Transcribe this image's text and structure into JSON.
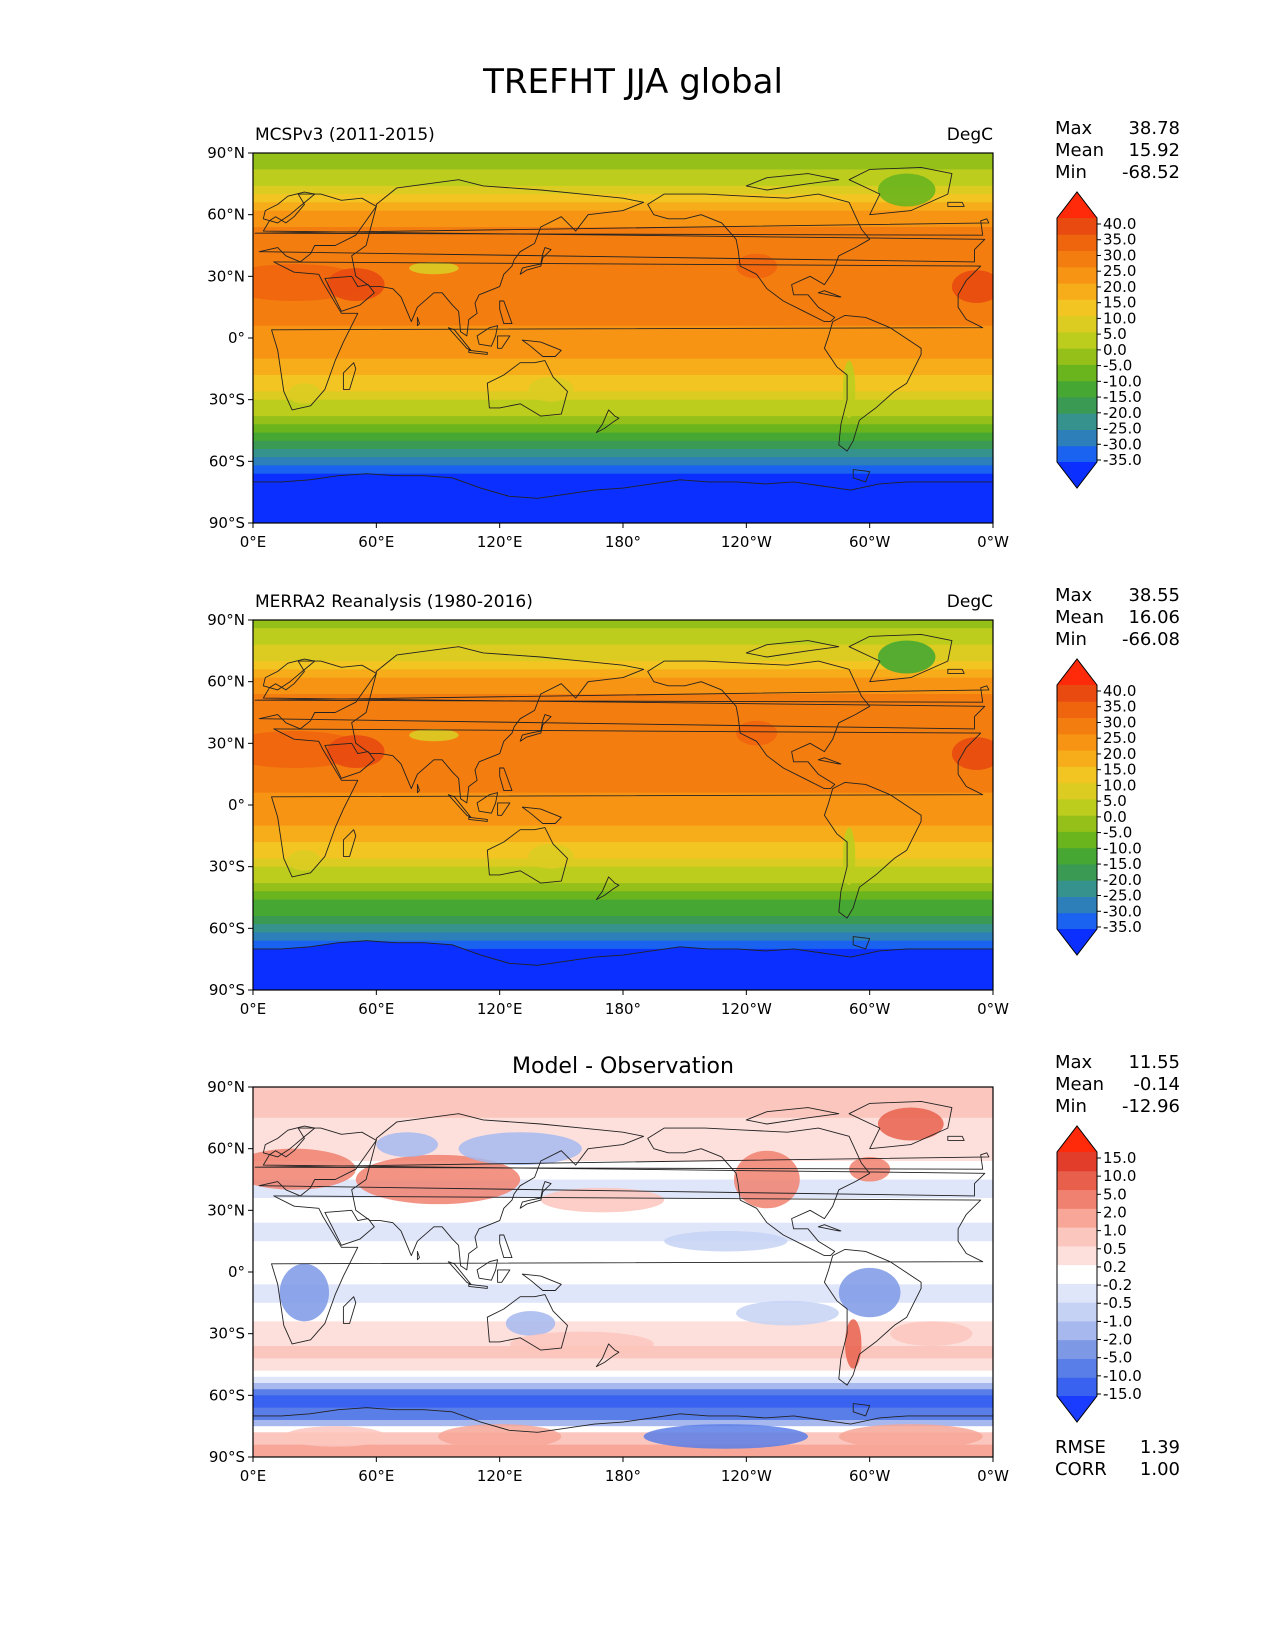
{
  "title": "TREFHT JJA global",
  "panels": [
    {
      "left_title": "MCSPv3 (2011-2015)",
      "center_title": "",
      "right_title": "DegC",
      "stats": [
        {
          "label": "Max",
          "value": "38.78"
        },
        {
          "label": "Mean",
          "value": "15.92"
        },
        {
          "label": "Min",
          "value": "-68.52"
        }
      ],
      "colorbar_labels": [
        "40.0",
        "35.0",
        "30.0",
        "25.0",
        "20.0",
        "15.0",
        "10.0",
        "5.0",
        "0.0",
        "-5.0",
        "-10.0",
        "-15.0",
        "-20.0",
        "-25.0",
        "-30.0",
        "-35.0"
      ]
    },
    {
      "left_title": "MERRA2 Reanalysis (1980-2016)",
      "center_title": "",
      "right_title": "DegC",
      "stats": [
        {
          "label": "Max",
          "value": "38.55"
        },
        {
          "label": "Mean",
          "value": "16.06"
        },
        {
          "label": "Min",
          "value": "-66.08"
        }
      ],
      "colorbar_labels": [
        "40.0",
        "35.0",
        "30.0",
        "25.0",
        "20.0",
        "15.0",
        "10.0",
        "5.0",
        "0.0",
        "-5.0",
        "-10.0",
        "-15.0",
        "-20.0",
        "-25.0",
        "-30.0",
        "-35.0"
      ]
    },
    {
      "left_title": "",
      "center_title": "Model - Observation",
      "right_title": "",
      "stats": [
        {
          "label": "Max",
          "value": "11.55"
        },
        {
          "label": "Mean",
          "value": "-0.14"
        },
        {
          "label": "Min",
          "value": "-12.96"
        }
      ],
      "colorbar_labels": [
        "15.0",
        "10.0",
        "5.0",
        "2.0",
        "1.0",
        "0.5",
        "0.2",
        "-0.2",
        "-0.5",
        "-1.0",
        "-2.0",
        "-5.0",
        "-10.0",
        "-15.0"
      ],
      "metrics": [
        {
          "label": "RMSE",
          "value": "1.39"
        },
        {
          "label": "CORR",
          "value": "1.00"
        }
      ]
    }
  ],
  "lat_labels": [
    "90°N",
    "60°N",
    "30°N",
    "0°",
    "30°S",
    "60°S",
    "90°S"
  ],
  "lon_labels": [
    "0°E",
    "60°E",
    "120°E",
    "180°",
    "120°W",
    "60°W",
    "0°W"
  ],
  "temp_colors": [
    "#0a2fff",
    "#1a62f0",
    "#2c7fb8",
    "#36928c",
    "#3a9a54",
    "#46a832",
    "#6ab51e",
    "#95c01a",
    "#bccd1e",
    "#dccc22",
    "#f3c522",
    "#f7ad1a",
    "#f89414",
    "#f47d10",
    "#ef650e",
    "#e84a10",
    "#ff2a0a"
  ],
  "diff_colors": [
    "#1a3cff",
    "#3a62f0",
    "#5a7ee8",
    "#7d99e6",
    "#a6b8ee",
    "#c6d2f4",
    "#e0e6fa",
    "#ffffff",
    "#fde0dc",
    "#fbc6bd",
    "#f7a698",
    "#f0806f",
    "#e8604c",
    "#e23c2a",
    "#ff2a0a"
  ]
}
